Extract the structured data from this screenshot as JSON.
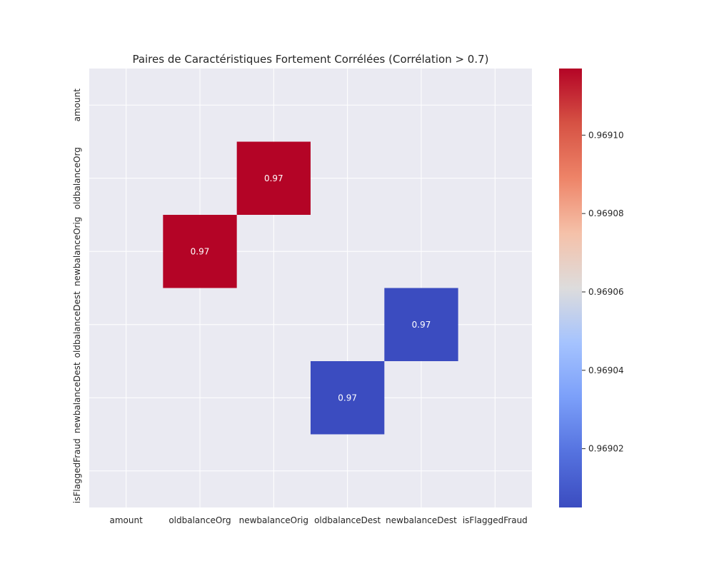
{
  "chart_data": {
    "type": "heatmap",
    "title": "Paires de Caractéristiques Fortement Corrélées (Corrélation > 0.7)",
    "x_categories": [
      "amount",
      "oldbalanceOrg",
      "newbalanceOrig",
      "oldbalanceDest",
      "newbalanceDest",
      "isFlaggedFraud"
    ],
    "y_categories": [
      "amount",
      "oldbalanceOrg",
      "newbalanceOrig",
      "oldbalanceDest",
      "newbalanceDest",
      "isFlaggedFraud"
    ],
    "cells": [
      {
        "x": "newbalanceOrig",
        "y": "oldbalanceOrg",
        "value": 0.969117,
        "label": "0.97"
      },
      {
        "x": "oldbalanceOrg",
        "y": "newbalanceOrig",
        "value": 0.969117,
        "label": "0.97"
      },
      {
        "x": "newbalanceDest",
        "y": "oldbalanceDest",
        "value": 0.969005,
        "label": "0.97"
      },
      {
        "x": "oldbalanceDest",
        "y": "newbalanceDest",
        "value": 0.969005,
        "label": "0.97"
      }
    ],
    "colorbar": {
      "colormap": "coolwarm",
      "range": [
        0.969005,
        0.969117
      ],
      "ticks": [
        0.96902,
        0.96904,
        0.96906,
        0.96908,
        0.9691
      ],
      "tick_labels": [
        "0.96902",
        "0.96904",
        "0.96906",
        "0.96908",
        "0.96910"
      ]
    },
    "grid": true,
    "colors": {
      "background": "#eaeaf2",
      "gridline": "#ffffff",
      "low": "#3b4cc0",
      "high": "#b40426"
    }
  }
}
